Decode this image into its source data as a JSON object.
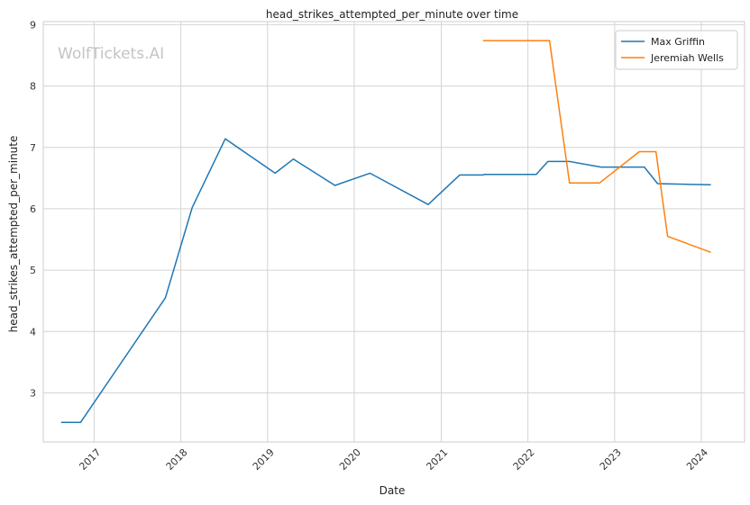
{
  "chart_data": {
    "type": "line",
    "title": "head_strikes_attempted_per_minute over time",
    "xlabel": "Date",
    "ylabel": "head_strikes_attempted_per_minute",
    "watermark": "WolfTickets.AI",
    "x_tick_labels": [
      "2017",
      "2018",
      "2019",
      "2020",
      "2021",
      "2022",
      "2023",
      "2024"
    ],
    "y_tick_labels": [
      "3",
      "4",
      "5",
      "6",
      "7",
      "8",
      "9"
    ],
    "y_ticks": [
      3,
      4,
      5,
      6,
      7,
      8,
      9
    ],
    "xlim": [
      "2016-06-01",
      "2024-07-01"
    ],
    "ylim": [
      2.2,
      9.05
    ],
    "grid": true,
    "legend_position": "top-right",
    "series": [
      {
        "name": "Max Griffin",
        "color": "#1f77b4",
        "points": [
          [
            "2016-08-15",
            2.52
          ],
          [
            "2016-11-05",
            2.52
          ],
          [
            "2017-10-28",
            4.55
          ],
          [
            "2018-02-18",
            6.02
          ],
          [
            "2018-07-07",
            7.14
          ],
          [
            "2019-02-02",
            6.58
          ],
          [
            "2019-04-20",
            6.81
          ],
          [
            "2019-10-12",
            6.38
          ],
          [
            "2020-03-07",
            6.58
          ],
          [
            "2020-11-07",
            6.07
          ],
          [
            "2021-03-20",
            6.55
          ],
          [
            "2021-06-26",
            6.55
          ],
          [
            "2021-07-01",
            6.56
          ],
          [
            "2022-02-05",
            6.56
          ],
          [
            "2022-03-26",
            6.77
          ],
          [
            "2022-06-25",
            6.77
          ],
          [
            "2022-11-05",
            6.68
          ],
          [
            "2023-05-06",
            6.68
          ],
          [
            "2023-07-01",
            6.41
          ],
          [
            "2024-02-10",
            6.39
          ]
        ]
      },
      {
        "name": "Jeremiah Wells",
        "color": "#ff7f0e",
        "points": [
          [
            "2021-06-26",
            8.74
          ],
          [
            "2022-04-02",
            8.74
          ],
          [
            "2022-06-25",
            6.42
          ],
          [
            "2022-10-29",
            6.42
          ],
          [
            "2023-04-15",
            6.93
          ],
          [
            "2023-06-24",
            6.93
          ],
          [
            "2023-08-12",
            5.55
          ],
          [
            "2024-02-10",
            5.29
          ]
        ]
      }
    ]
  }
}
